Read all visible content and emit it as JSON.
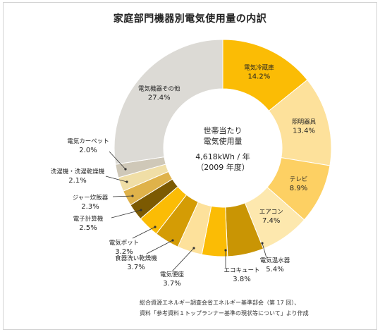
{
  "title": "家庭部門機器別電気使用量の内訳",
  "center": {
    "line1": "世帯当たり",
    "line2": "電気使用量",
    "line3": "4,618kWh / 年",
    "line4": "（2009 年度）"
  },
  "source": {
    "line1": "総合資源エネルギー調査会省エネルギー基準部会（第 17 回）、",
    "line2": "資料「参考資料１トップランナー基準の現状等について」より作成"
  },
  "chart_data": {
    "type": "pie",
    "subtype": "donut",
    "unit": "%",
    "slices": [
      {
        "label": "電気冷蔵庫",
        "value": 14.2,
        "value_label": "14.2%",
        "color": "#FBBC05",
        "label_inside": true
      },
      {
        "label": "照明器具",
        "value": 13.4,
        "value_label": "13.4%",
        "color": "#FDE19B",
        "label_inside": true
      },
      {
        "label": "テレビ",
        "value": 8.9,
        "value_label": "8.9%",
        "color": "#FDD063",
        "label_inside": true
      },
      {
        "label": "エアコン",
        "value": 7.4,
        "value_label": "7.4%",
        "color": "#FDE8AE",
        "label_inside": true
      },
      {
        "label": "電気温水器",
        "value": 5.4,
        "value_label": "5.4%",
        "color": "#C99504",
        "label_inside": false
      },
      {
        "label": "エコキュート",
        "value": 3.8,
        "value_label": "3.8%",
        "color": "#FBBC05",
        "label_inside": false
      },
      {
        "label": "電気便座",
        "value": 3.7,
        "value_label": "3.7%",
        "color": "#FDE19B",
        "label_inside": false
      },
      {
        "label": "食器洗い乾燥機",
        "value": 3.7,
        "value_label": "3.7%",
        "color": "#D49C05",
        "label_inside": false
      },
      {
        "label": "電気ポット",
        "value": 3.2,
        "value_label": "3.2%",
        "color": "#FBBC05",
        "label_inside": false
      },
      {
        "label": "電子計算機",
        "value": 2.5,
        "value_label": "2.5%",
        "color": "#7C5A02",
        "label_inside": false
      },
      {
        "label": "ジャー炊飯器",
        "value": 2.3,
        "value_label": "2.3%",
        "color": "#DFB24A",
        "label_inside": false
      },
      {
        "label": "洗濯機・洗濯乾燥機",
        "value": 2.1,
        "value_label": "2.1%",
        "color": "#F0DEA6",
        "label_inside": false
      },
      {
        "label": "電気カーペット",
        "value": 2.0,
        "value_label": "2.0%",
        "color": "#CFC8B8",
        "label_inside": false
      },
      {
        "label": "電気機器その他",
        "value": 27.4,
        "value_label": "27.4%",
        "color": "#DCDAD5",
        "label_inside": true
      }
    ]
  }
}
